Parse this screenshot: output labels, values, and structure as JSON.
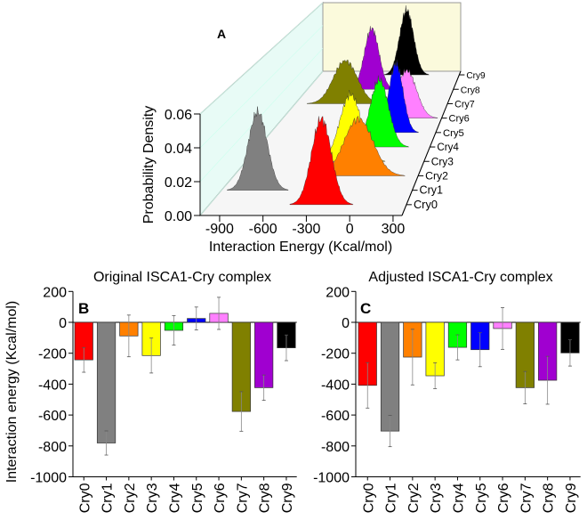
{
  "chart_data": [
    {
      "panel": "A",
      "type": "area",
      "title": "",
      "xlabel": "Interaction Energy (Kcal/mol)",
      "ylabel": "Probability Density",
      "xticks": [
        "-900",
        "-600",
        "-300",
        "0",
        "300"
      ],
      "xtick_values": [
        -900,
        -600,
        -300,
        0,
        300
      ],
      "yticks": [
        "0.00",
        "0.02",
        "0.04",
        "0.06"
      ],
      "ytick_values": [
        0,
        0.02,
        0.04,
        0.06
      ],
      "xlim": [
        -1035,
        362
      ],
      "ylim": [
        0,
        0.06
      ],
      "series": [
        {
          "name": "Cry0",
          "color": "#ff0000",
          "mean": -240,
          "sd": 70,
          "peak": 0.052
        },
        {
          "name": "Cry1",
          "color": "#808080",
          "mean": -770,
          "sd": 70,
          "peak": 0.049
        },
        {
          "name": "Cry2",
          "color": "#ff8000",
          "mean": -90,
          "sd": 110,
          "peak": 0.037
        },
        {
          "name": "Cry3",
          "color": "#ffff00",
          "mean": -215,
          "sd": 85,
          "peak": 0.045
        },
        {
          "name": "Cry4",
          "color": "#00ff00",
          "mean": -50,
          "sd": 75,
          "peak": 0.047
        },
        {
          "name": "Cry5",
          "color": "#0000ff",
          "mean": 25,
          "sd": 60,
          "peak": 0.05
        },
        {
          "name": "Cry6",
          "color": "#ff80ff",
          "mean": 55,
          "sd": 85,
          "peak": 0.036
        },
        {
          "name": "Cry7",
          "color": "#808000",
          "mean": -575,
          "sd": 110,
          "peak": 0.034
        },
        {
          "name": "Cry8",
          "color": "#a000d0",
          "mean": -420,
          "sd": 70,
          "peak": 0.05
        },
        {
          "name": "Cry9",
          "color": "#000000",
          "mean": -165,
          "sd": 70,
          "peak": 0.056
        }
      ]
    },
    {
      "panel": "B",
      "type": "bar",
      "title": "Original ISCA1-Cry complex",
      "xlabel": "",
      "ylabel": "Interaction energy (Kcal/mol)",
      "categories": [
        "Cry0",
        "Cry1",
        "Cry2",
        "Cry3",
        "Cry4",
        "Cry5",
        "Cry6",
        "Cry7",
        "Cry8",
        "Cry9"
      ],
      "values": [
        -243,
        -781,
        -88,
        -215,
        -52,
        25,
        58,
        -577,
        -423,
        -165
      ],
      "errors": [
        80,
        78,
        135,
        113,
        95,
        74,
        104,
        128,
        82,
        83
      ],
      "colors": [
        "#ff0000",
        "#808080",
        "#ff8000",
        "#ffff00",
        "#00ff00",
        "#0000ff",
        "#ff80ff",
        "#808000",
        "#a000d0",
        "#000000"
      ],
      "yticks": [
        "200",
        "0",
        "-200",
        "-400",
        "-600",
        "-800",
        "-1000"
      ],
      "ytick_values": [
        200,
        0,
        -200,
        -400,
        -600,
        -800,
        -1000
      ],
      "ylim": [
        -1000,
        200
      ]
    },
    {
      "panel": "C",
      "type": "bar",
      "title": "Adjusted ISCA1-Cry complex",
      "xlabel": "",
      "ylabel": "",
      "categories": [
        "Cry0",
        "Cry1",
        "Cry2",
        "Cry3",
        "Cry4",
        "Cry5",
        "Cry6",
        "Cry7",
        "Cry8",
        "Cry9"
      ],
      "values": [
        -408,
        -704,
        -225,
        -346,
        -162,
        -177,
        -40,
        -423,
        -375,
        -198
      ],
      "errors": [
        147,
        101,
        180,
        83,
        81,
        110,
        135,
        105,
        155,
        85
      ],
      "colors": [
        "#ff0000",
        "#808080",
        "#ff8000",
        "#ffff00",
        "#00ff00",
        "#0000ff",
        "#ff80ff",
        "#808000",
        "#a000d0",
        "#000000"
      ],
      "yticks": [
        "200",
        "0",
        "-200",
        "-400",
        "-600",
        "-800",
        "-1000"
      ],
      "ytick_values": [
        200,
        0,
        -200,
        -400,
        -600,
        -800,
        -1000
      ],
      "ylim": [
        -1000,
        200
      ]
    }
  ],
  "panel_labels": {
    "a": "A",
    "b": "B",
    "c": "C"
  }
}
